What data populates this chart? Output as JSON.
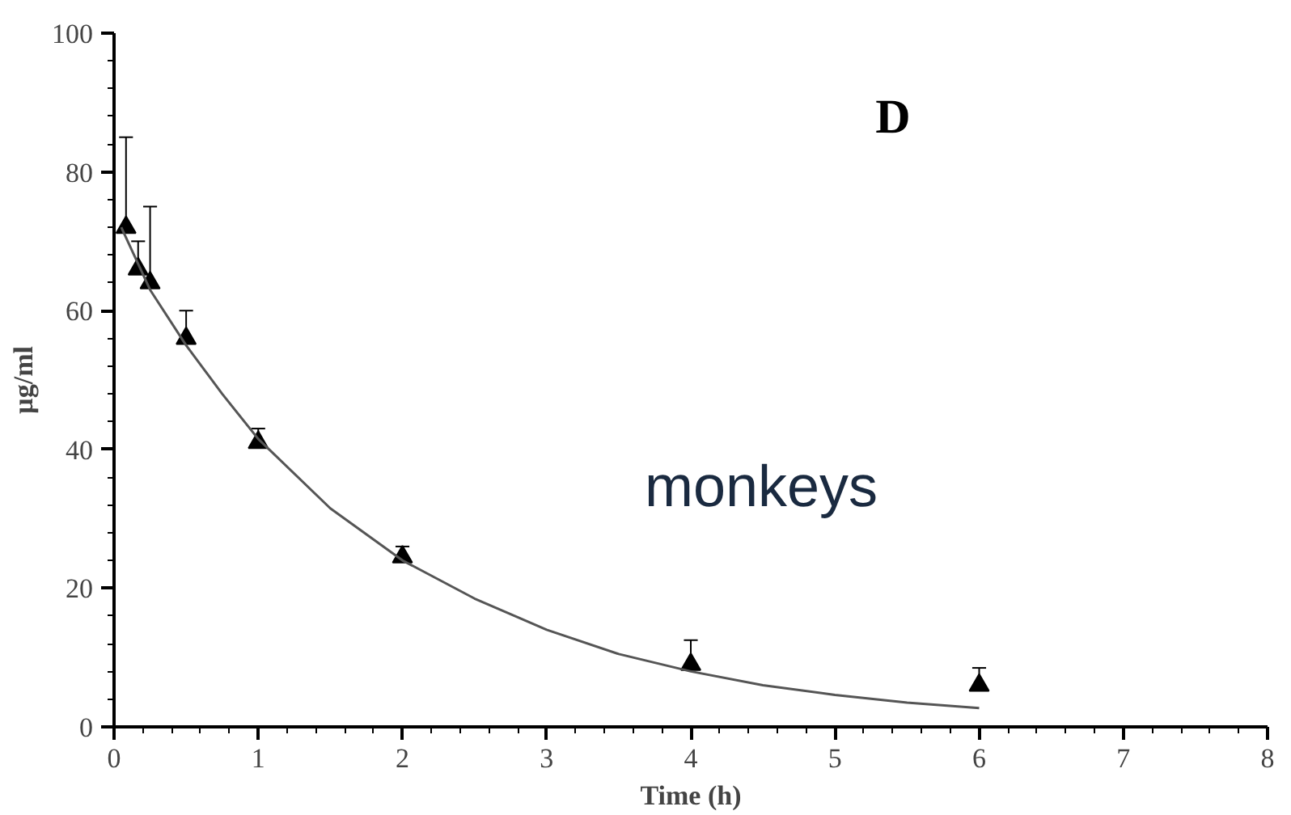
{
  "chart_data": {
    "type": "scatter",
    "xlabel": "Time (h)",
    "ylabel": "µg/ml",
    "annotations": [
      "D",
      "monkeys"
    ],
    "xlim": [
      0,
      8
    ],
    "ylim": [
      0,
      100
    ],
    "xticks": [
      0,
      1,
      2,
      3,
      4,
      5,
      6,
      7,
      8
    ],
    "yticks": [
      0,
      20,
      40,
      60,
      80,
      100
    ],
    "grid": false,
    "series": [
      {
        "color": "#000000",
        "marker": "triangle",
        "x": [
          0.083,
          0.167,
          0.25,
          0.5,
          1,
          2,
          4,
          6
        ],
        "values": [
          72,
          66,
          64,
          56,
          41,
          24.5,
          9,
          6
        ],
        "errors": [
          [
            72,
            85
          ],
          [
            66,
            70
          ],
          [
            64,
            75
          ],
          [
            56,
            60
          ],
          [
            41,
            43
          ],
          [
            24.5,
            26
          ],
          [
            9,
            12.5
          ],
          [
            6,
            8.5
          ]
        ]
      },
      {
        "type": "line",
        "color": "#555555",
        "marker": "none",
        "line_style": "solid",
        "x": [
          0.05,
          0.25,
          0.5,
          0.75,
          1,
          1.5,
          2,
          2.5,
          3,
          3.5,
          4,
          4.5,
          5,
          5.5,
          6
        ],
        "values": [
          72,
          63,
          55,
          48,
          41.5,
          31.5,
          24,
          18.5,
          14,
          10.5,
          8,
          6,
          4.6,
          3.5,
          2.7
        ]
      }
    ]
  }
}
